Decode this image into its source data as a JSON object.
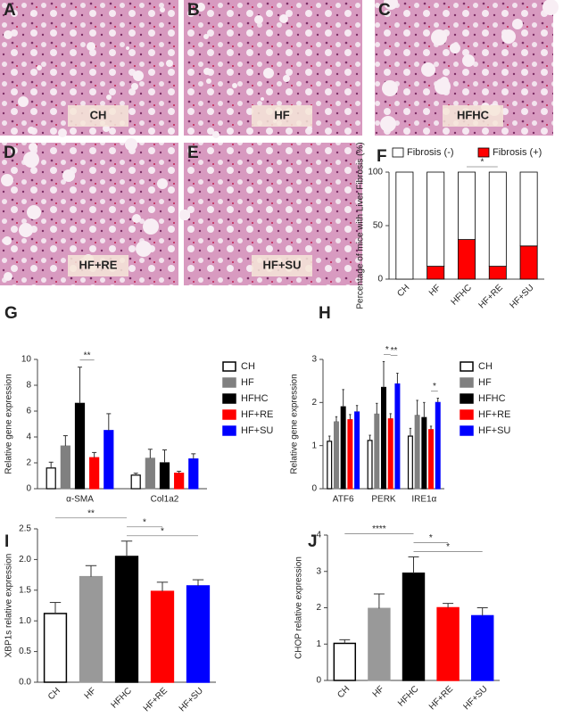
{
  "images": [
    {
      "panel": "A",
      "label": "CH"
    },
    {
      "panel": "B",
      "label": "HF"
    },
    {
      "panel": "C",
      "label": "HFHC"
    },
    {
      "panel": "D",
      "label": "HF+RE"
    },
    {
      "panel": "E",
      "label": "HF+SU"
    }
  ],
  "chart_data": [
    {
      "type": "stacked_bar",
      "panel": "F",
      "ylabel": "Percentage of mice with Liver Fibrosis (%)",
      "categories": [
        "CH",
        "HF",
        "HFHC",
        "HF+RE",
        "HF+SU"
      ],
      "xtick_rotation": 45,
      "series": [
        {
          "name": "Fibrosis (+)",
          "color": "#ff0000",
          "values": [
            0,
            12,
            37,
            12,
            31
          ]
        },
        {
          "name": "Fibrosis (-)",
          "color": "#ffffff",
          "values": [
            100,
            88,
            63,
            88,
            69
          ]
        }
      ],
      "ylim": [
        0,
        100
      ],
      "yticks": [
        0,
        50,
        100
      ],
      "legend": "top",
      "annotations": [
        {
          "text": "*",
          "between": [
            2,
            3
          ]
        }
      ]
    },
    {
      "type": "grouped_bar",
      "panel": "G",
      "ylabel": "Relative gene expression",
      "categories": [
        "α-SMA",
        "Col1a2"
      ],
      "series": [
        {
          "name": "CH",
          "color": "#ffffff",
          "values": [
            1.6,
            1.05
          ],
          "errors": [
            0.45,
            0.15
          ]
        },
        {
          "name": "HF",
          "color": "#808080",
          "values": [
            3.3,
            2.35
          ],
          "errors": [
            0.8,
            0.7
          ]
        },
        {
          "name": "HFHC",
          "color": "#000000",
          "values": [
            6.6,
            2.0
          ],
          "errors": [
            2.8,
            1.0
          ]
        },
        {
          "name": "HF+RE",
          "color": "#ff0000",
          "values": [
            2.4,
            1.2
          ],
          "errors": [
            0.4,
            0.15
          ]
        },
        {
          "name": "HF+SU",
          "color": "#0000ff",
          "values": [
            4.5,
            2.3
          ],
          "errors": [
            1.3,
            0.4
          ]
        }
      ],
      "ylim": [
        0,
        10
      ],
      "yticks": [
        0,
        2,
        4,
        6,
        8,
        10
      ],
      "legend": "right",
      "annotations": [
        {
          "text": "**",
          "category": 0,
          "between": [
            2,
            3
          ]
        }
      ]
    },
    {
      "type": "grouped_bar",
      "panel": "H",
      "ylabel": "Relative gene expression",
      "categories": [
        "ATF6",
        "PERK",
        "IRE1α"
      ],
      "series": [
        {
          "name": "CH",
          "color": "#ffffff",
          "values": [
            1.1,
            1.12,
            1.22
          ],
          "errors": [
            0.12,
            0.12,
            0.18
          ]
        },
        {
          "name": "HF",
          "color": "#808080",
          "values": [
            1.55,
            1.73,
            1.7
          ],
          "errors": [
            0.12,
            0.25,
            0.35
          ]
        },
        {
          "name": "HFHC",
          "color": "#000000",
          "values": [
            1.9,
            2.35,
            1.65
          ],
          "errors": [
            0.4,
            0.6,
            0.35
          ]
        },
        {
          "name": "HF+RE",
          "color": "#ff0000",
          "values": [
            1.6,
            1.62,
            1.37
          ],
          "errors": [
            0.12,
            0.12,
            0.08
          ]
        },
        {
          "name": "HF+SU",
          "color": "#0000ff",
          "values": [
            1.78,
            2.43,
            2.0
          ],
          "errors": [
            0.15,
            0.25,
            0.1
          ]
        }
      ],
      "ylim": [
        0,
        3
      ],
      "yticks": [
        0,
        1,
        2,
        3
      ],
      "legend": "right",
      "annotations": [
        {
          "text": "*",
          "category": 1,
          "between": [
            2,
            3
          ]
        },
        {
          "text": "**",
          "category": 1,
          "between": [
            3,
            4
          ]
        },
        {
          "text": "*",
          "category": 2,
          "between": [
            3,
            4
          ]
        }
      ]
    },
    {
      "type": "bar",
      "panel": "I",
      "ylabel": "XBP1s relative expression",
      "categories": [
        "CH",
        "HF",
        "HFHC",
        "HF+RE",
        "HF+SU"
      ],
      "xtick_rotation": 45,
      "values": [
        1.12,
        1.72,
        2.05,
        1.48,
        1.57
      ],
      "errors": [
        0.18,
        0.18,
        0.25,
        0.15,
        0.1
      ],
      "colors": [
        "#ffffff",
        "#999999",
        "#000000",
        "#ff0000",
        "#0000ff"
      ],
      "ylim": [
        0,
        2.5
      ],
      "yticks": [
        {
          "value": 0,
          "label": "0.0"
        },
        {
          "value": 0.5,
          "label": "0.5"
        },
        {
          "value": 1,
          "label": "1.0"
        },
        {
          "value": 1.5,
          "label": "1.5"
        },
        {
          "value": 2,
          "label": "2.0"
        },
        {
          "value": 2.5,
          "label": "2.5"
        }
      ],
      "annotations": [
        {
          "text": "**",
          "between": [
            0,
            2
          ]
        },
        {
          "text": "*",
          "between": [
            2,
            3
          ]
        },
        {
          "text": "*",
          "between": [
            2,
            4
          ]
        }
      ]
    },
    {
      "type": "bar",
      "panel": "J",
      "ylabel": "CHOP relative expression",
      "categories": [
        "CH",
        "HF",
        "HFHC",
        "HF+RE",
        "HF+SU"
      ],
      "xtick_rotation": 45,
      "values": [
        1.02,
        1.98,
        2.95,
        2.0,
        1.78
      ],
      "errors": [
        0.1,
        0.4,
        0.45,
        0.12,
        0.22
      ],
      "colors": [
        "#ffffff",
        "#999999",
        "#000000",
        "#ff0000",
        "#0000ff"
      ],
      "ylim": [
        0,
        4
      ],
      "yticks": [
        0,
        1,
        2,
        3,
        4
      ],
      "annotations": [
        {
          "text": "****",
          "between": [
            0,
            2
          ]
        },
        {
          "text": "*",
          "between": [
            2,
            3
          ]
        },
        {
          "text": "*",
          "between": [
            2,
            4
          ]
        }
      ]
    }
  ]
}
